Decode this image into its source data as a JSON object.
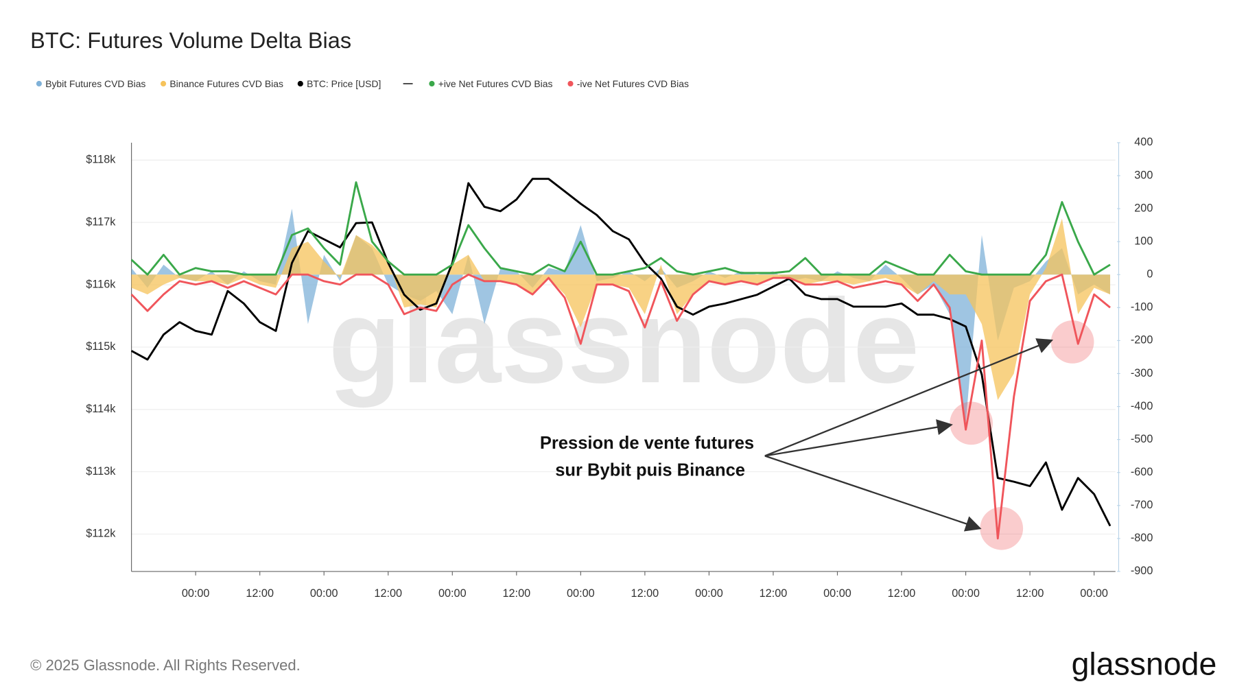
{
  "chart_data": {
    "type": "line",
    "title": "BTC: Futures Volume Delta Bias",
    "x": [
      0,
      3,
      6,
      9,
      12,
      15,
      18,
      21,
      24,
      27,
      30,
      33,
      36,
      39,
      42,
      45,
      48,
      51,
      54,
      57,
      60,
      63,
      66,
      69,
      72,
      75,
      78,
      81,
      84,
      87,
      90,
      93,
      96,
      99,
      102,
      105,
      108,
      111,
      114,
      117,
      120,
      123,
      126,
      129,
      132,
      135,
      138,
      141,
      144,
      147,
      150,
      153,
      156,
      159,
      162,
      165,
      168,
      171,
      174,
      177,
      180,
      183
    ],
    "xlim": [
      0,
      184
    ],
    "xticks": [
      {
        "value": 12,
        "label": "00:00"
      },
      {
        "value": 24,
        "label": "12:00"
      },
      {
        "value": 36,
        "label": "00:00"
      },
      {
        "value": 48,
        "label": "12:00"
      },
      {
        "value": 60,
        "label": "00:00"
      },
      {
        "value": 72,
        "label": "12:00"
      },
      {
        "value": 84,
        "label": "00:00"
      },
      {
        "value": 96,
        "label": "12:00"
      },
      {
        "value": 108,
        "label": "00:00"
      },
      {
        "value": 120,
        "label": "12:00"
      },
      {
        "value": 132,
        "label": "00:00"
      },
      {
        "value": 144,
        "label": "12:00"
      },
      {
        "value": 156,
        "label": "00:00"
      },
      {
        "value": 168,
        "label": "12:00"
      },
      {
        "value": 180,
        "label": "00:00"
      }
    ],
    "ylim": [
      111400,
      118280
    ],
    "yticks": [
      {
        "value": 112000,
        "label": "$112k"
      },
      {
        "value": 113000,
        "label": "$113k"
      },
      {
        "value": 114000,
        "label": "$114k"
      },
      {
        "value": 115000,
        "label": "$115k"
      },
      {
        "value": 116000,
        "label": "$116k"
      },
      {
        "value": 117000,
        "label": "$117k"
      },
      {
        "value": 118000,
        "label": "$118k"
      }
    ],
    "y2lim": [
      -900,
      400
    ],
    "y2ticks": [
      -900,
      -800,
      -700,
      -600,
      -500,
      -400,
      -300,
      -200,
      -100,
      0,
      100,
      200,
      300,
      400
    ],
    "grid": true,
    "series": [
      {
        "name": "Bybit Futures CVD Bias",
        "color": "#7fb1d8",
        "kind": "area",
        "axis": "y2",
        "values": [
          20,
          -40,
          30,
          -10,
          -20,
          10,
          -30,
          10,
          -20,
          -30,
          200,
          -150,
          60,
          -20,
          120,
          80,
          -30,
          -60,
          -80,
          -50,
          -120,
          60,
          -150,
          20,
          10,
          -40,
          20,
          10,
          150,
          -20,
          -10,
          10,
          -20,
          20,
          -40,
          -20,
          10,
          -10,
          10,
          0,
          10,
          -20,
          -10,
          -20,
          10,
          -10,
          -20,
          30,
          -10,
          -60,
          -30,
          -120,
          -450,
          120,
          -200,
          -40,
          -20,
          40,
          80,
          -60,
          -30,
          -60
        ]
      },
      {
        "name": "Binance Futures CVD Bias",
        "color": "#f6c35b",
        "kind": "area",
        "axis": "y2",
        "values": [
          -40,
          -60,
          -30,
          -10,
          -20,
          -20,
          -30,
          -10,
          -30,
          -40,
          80,
          100,
          40,
          -10,
          120,
          90,
          40,
          -100,
          -90,
          -100,
          30,
          60,
          -20,
          -20,
          -30,
          -60,
          -10,
          -60,
          -160,
          -30,
          -30,
          -40,
          -120,
          30,
          -120,
          -60,
          -20,
          -30,
          -20,
          -30,
          -10,
          -10,
          -30,
          -20,
          -20,
          -30,
          -20,
          -10,
          -30,
          -60,
          -20,
          -60,
          -60,
          -150,
          -380,
          -300,
          -60,
          20,
          170,
          -120,
          -40,
          -60
        ]
      },
      {
        "name": "BTC: Price [USD]",
        "color": "#000000",
        "kind": "line",
        "axis": "y",
        "values": [
          114940,
          114800,
          115200,
          115400,
          115260,
          115200,
          115900,
          115700,
          115400,
          115260,
          116350,
          116860,
          116730,
          116600,
          116990,
          117000,
          116350,
          115840,
          115600,
          115700,
          116350,
          117630,
          117250,
          117180,
          117370,
          117700,
          117700,
          117500,
          117300,
          117120,
          116860,
          116730,
          116350,
          116100,
          115650,
          115520,
          115650,
          115700,
          115770,
          115840,
          115970,
          116100,
          115840,
          115770,
          115770,
          115650,
          115650,
          115650,
          115700,
          115520,
          115520,
          115450,
          115330,
          114560,
          112900,
          112840,
          112770,
          113150,
          112390,
          112900,
          112640,
          112130
        ]
      },
      {
        "name": "+ive Net Futures CVD Bias",
        "color": "#3aa84a",
        "kind": "line",
        "axis": "y2",
        "values": [
          45,
          0,
          60,
          0,
          20,
          10,
          10,
          0,
          0,
          0,
          120,
          140,
          80,
          30,
          280,
          100,
          40,
          0,
          0,
          0,
          30,
          150,
          80,
          20,
          10,
          0,
          30,
          10,
          100,
          0,
          0,
          10,
          20,
          50,
          10,
          0,
          10,
          20,
          5,
          5,
          5,
          10,
          50,
          0,
          0,
          0,
          0,
          40,
          20,
          0,
          0,
          60,
          10,
          0,
          0,
          0,
          0,
          60,
          220,
          100,
          0,
          30
        ]
      },
      {
        "name": "-ive Net Futures CVD Bias",
        "color": "#f0555b",
        "kind": "line",
        "axis": "y2",
        "values": [
          -60,
          -110,
          -60,
          -20,
          -30,
          -20,
          -40,
          -20,
          -40,
          -60,
          0,
          0,
          -20,
          -30,
          0,
          0,
          -30,
          -120,
          -100,
          -110,
          -30,
          0,
          -20,
          -20,
          -30,
          -60,
          -10,
          -70,
          -210,
          -30,
          -30,
          -50,
          -160,
          -20,
          -140,
          -60,
          -20,
          -30,
          -20,
          -30,
          -10,
          -10,
          -30,
          -30,
          -20,
          -40,
          -30,
          -20,
          -30,
          -80,
          -30,
          -100,
          -470,
          -200,
          -800,
          -370,
          -80,
          -20,
          0,
          -210,
          -60,
          -100
        ]
      }
    ],
    "annotation": [
      "Pression de vente futures",
      "sur Bybit puis Binance"
    ]
  },
  "watermark": "glassnode",
  "copyright": "© 2025 Glassnode. All Rights Reserved.",
  "logo": "glassnode"
}
